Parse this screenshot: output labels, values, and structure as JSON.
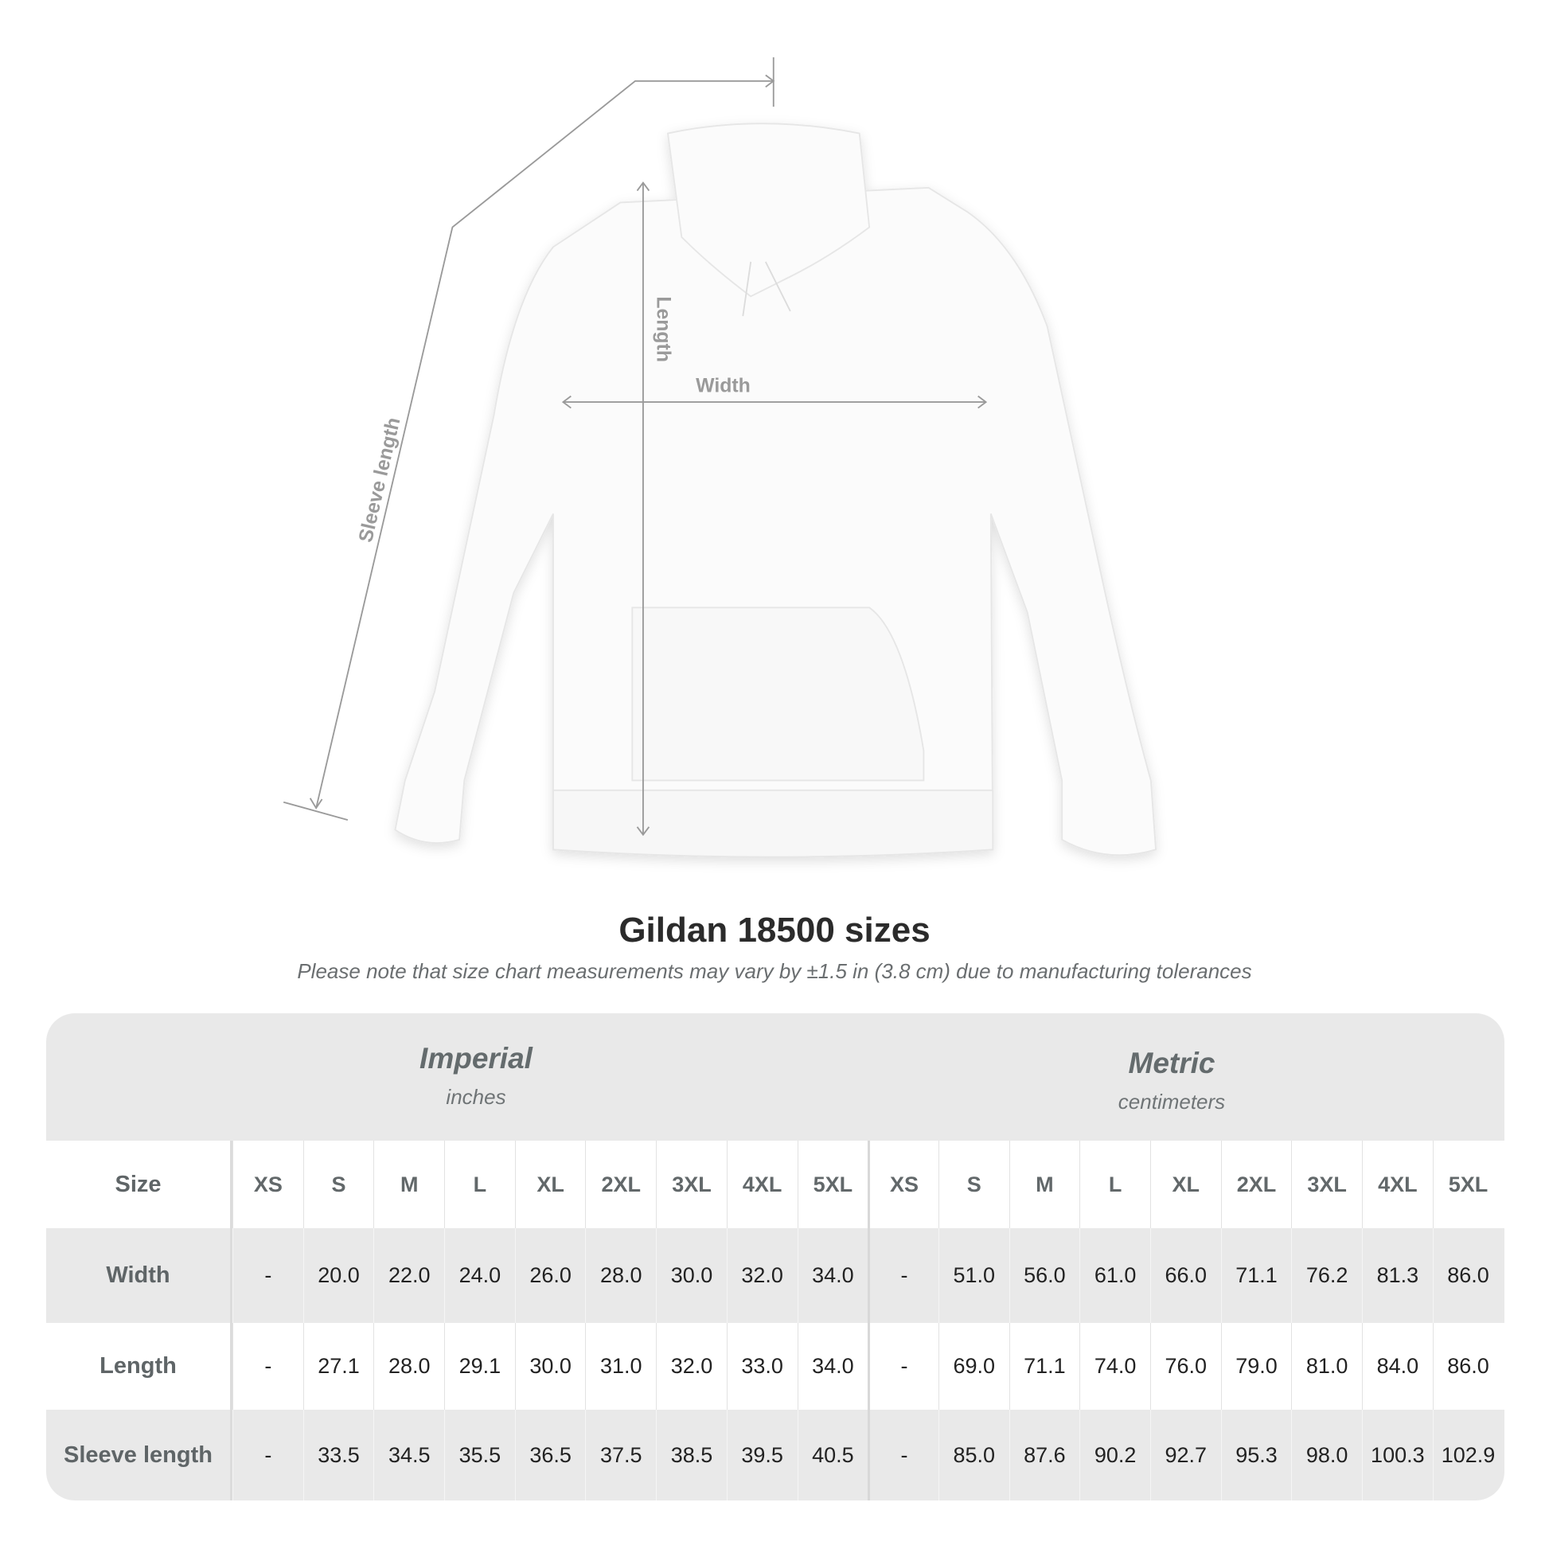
{
  "diagram": {
    "labels": {
      "sleeve": "Sleeve length",
      "length": "Length",
      "width": "Width"
    }
  },
  "title": "Gildan 18500 sizes",
  "subtitle": "Please note that size chart measurements may vary by ±1.5 in (3.8 cm) due to manufacturing tolerances",
  "table": {
    "imperial": {
      "name": "Imperial",
      "unit": "inches"
    },
    "metric": {
      "name": "Metric",
      "unit": "centimeters"
    },
    "rows": [
      {
        "label": "Size",
        "values": [
          "XS",
          "S",
          "M",
          "L",
          "XL",
          "2XL",
          "3XL",
          "4XL",
          "5XL",
          "XS",
          "S",
          "M",
          "L",
          "XL",
          "2XL",
          "3XL",
          "4XL",
          "5XL"
        ]
      },
      {
        "label": "Width",
        "values": [
          "-",
          "20.0",
          "22.0",
          "24.0",
          "26.0",
          "28.0",
          "30.0",
          "32.0",
          "34.0",
          "-",
          "51.0",
          "56.0",
          "61.0",
          "66.0",
          "71.1",
          "76.2",
          "81.3",
          "86.0"
        ]
      },
      {
        "label": "Length",
        "values": [
          "-",
          "27.1",
          "28.0",
          "29.1",
          "30.0",
          "31.0",
          "32.0",
          "33.0",
          "34.0",
          "-",
          "69.0",
          "71.1",
          "74.0",
          "76.0",
          "79.0",
          "81.0",
          "84.0",
          "86.0"
        ]
      },
      {
        "label": "Sleeve length",
        "values": [
          "-",
          "33.5",
          "34.5",
          "35.5",
          "36.5",
          "37.5",
          "38.5",
          "39.5",
          "40.5",
          "-",
          "85.0",
          "87.6",
          "90.2",
          "92.7",
          "95.3",
          "98.0",
          "100.3",
          "102.9"
        ]
      }
    ]
  }
}
